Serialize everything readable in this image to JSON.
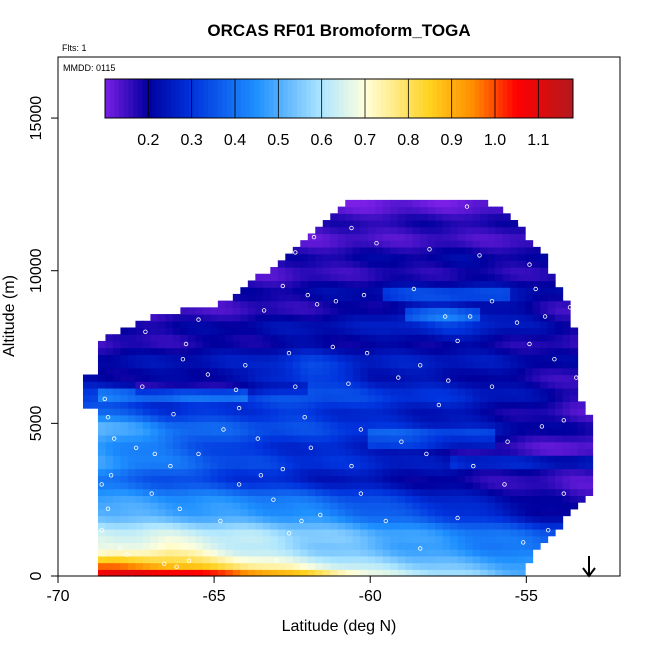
{
  "chart_data": {
    "type": "heatmap",
    "title": "ORCAS RF01 Bromoform_TOGA",
    "xlabel": "Latitude (deg N)",
    "ylabel": "Altitude (m)",
    "xlim": [
      -70,
      -52
    ],
    "ylim": [
      0,
      17000
    ],
    "x_ticks": [
      "-70",
      "-65",
      "-60",
      "-55"
    ],
    "x_tick_values": [
      -70,
      -65,
      -60,
      -55
    ],
    "y_ticks": [
      "0",
      "5000",
      "10000",
      "15000"
    ],
    "y_tick_values": [
      0,
      5000,
      10000,
      15000
    ],
    "flights_note": "Flts: 1",
    "date_note": "MMDD: 0115",
    "arrow_latitude": -53,
    "colorbar": {
      "min": 0.1,
      "max": 1.18,
      "tick_values": [
        0.2,
        0.3,
        0.4,
        0.5,
        0.6,
        0.7,
        0.8,
        0.9,
        1.0,
        1.1
      ],
      "tick_labels": [
        "0.2",
        "0.3",
        "0.4",
        "0.5",
        "0.6",
        "0.7",
        "0.8",
        "0.9",
        "1.0",
        "1.1"
      ],
      "colors": [
        "#7a1fe6",
        "#00009e",
        "#0033dd",
        "#1e90ff",
        "#aee6ff",
        "#ffffdc",
        "#ffd21e",
        "#ff8c00",
        "#ff0000",
        "#b2191e"
      ],
      "color_stops": [
        0.1,
        0.2,
        0.3,
        0.45,
        0.6,
        0.7,
        0.85,
        0.95,
        1.05,
        1.18
      ]
    },
    "shape": {
      "top": [
        [
          -68.8,
          7400
        ],
        [
          -68.4,
          7800
        ],
        [
          -67.0,
          8500
        ],
        [
          -64.5,
          9000
        ],
        [
          -63.2,
          10100
        ],
        [
          -62.0,
          11200
        ],
        [
          -60.7,
          12400
        ],
        [
          -59.5,
          12300
        ],
        [
          -56.0,
          12200
        ],
        [
          -55.0,
          11200
        ],
        [
          -54.5,
          10600
        ],
        [
          -54.0,
          9500
        ],
        [
          -53.5,
          8500
        ],
        [
          -53.3,
          5800
        ],
        [
          -52.9,
          5000
        ],
        [
          -52.9,
          2800
        ],
        [
          -53.5,
          2100
        ],
        [
          -54.0,
          1600
        ],
        [
          -54.7,
          900
        ],
        [
          -55.0,
          300
        ]
      ],
      "left_bottom": [
        -68.8,
        0
      ],
      "left_mid": [
        -69.2,
        6500
      ]
    },
    "profile": [
      {
        "alt": 0,
        "values": [
          [
            -68.8,
            1.12
          ],
          [
            -66.0,
            1.16
          ],
          [
            -63.5,
            1.0
          ],
          [
            -61.5,
            0.85
          ],
          [
            -60.0,
            0.68
          ],
          [
            -57.0,
            0.58
          ],
          [
            -55.0,
            0.5
          ]
        ]
      },
      {
        "alt": 350,
        "values": [
          [
            -68.8,
            0.95
          ],
          [
            -66.5,
            0.86
          ],
          [
            -64.0,
            0.74
          ],
          [
            -62.0,
            0.65
          ],
          [
            -60.0,
            0.58
          ],
          [
            -57.0,
            0.5
          ],
          [
            -55.0,
            0.45
          ]
        ]
      },
      {
        "alt": 800,
        "values": [
          [
            -68.8,
            0.7
          ],
          [
            -66.5,
            0.78
          ],
          [
            -64.0,
            0.66
          ],
          [
            -62.0,
            0.6
          ],
          [
            -60.0,
            0.55
          ],
          [
            -57.0,
            0.48
          ],
          [
            -54.0,
            0.42
          ]
        ]
      },
      {
        "alt": 1300,
        "values": [
          [
            -68.8,
            0.62
          ],
          [
            -66.5,
            0.64
          ],
          [
            -64.0,
            0.6
          ],
          [
            -62.0,
            0.55
          ],
          [
            -60.0,
            0.5
          ],
          [
            -57.0,
            0.42
          ],
          [
            -54.5,
            0.36
          ]
        ]
      },
      {
        "alt": 2000,
        "values": [
          [
            -68.8,
            0.56
          ],
          [
            -66.5,
            0.52
          ],
          [
            -64.0,
            0.5
          ],
          [
            -62.0,
            0.48
          ],
          [
            -60.0,
            0.42
          ],
          [
            -57.0,
            0.33
          ],
          [
            -54.0,
            0.22
          ]
        ]
      },
      {
        "alt": 2600,
        "values": [
          [
            -68.8,
            0.45
          ],
          [
            -66.5,
            0.42
          ],
          [
            -64.0,
            0.4
          ],
          [
            -62.0,
            0.36
          ],
          [
            -60.0,
            0.3
          ],
          [
            -57.0,
            0.22
          ],
          [
            -53.5,
            0.14
          ]
        ]
      },
      {
        "alt": 3300,
        "values": [
          [
            -68.8,
            0.42
          ],
          [
            -66.5,
            0.36
          ],
          [
            -64.0,
            0.3
          ],
          [
            -62.0,
            0.26
          ],
          [
            -60.0,
            0.24
          ],
          [
            -57.0,
            0.2
          ],
          [
            -53.5,
            0.17
          ]
        ]
      },
      {
        "alt": 4200,
        "values": [
          [
            -68.8,
            0.5
          ],
          [
            -66.5,
            0.42
          ],
          [
            -64.0,
            0.32
          ],
          [
            -62.0,
            0.3
          ],
          [
            -60.0,
            0.28
          ],
          [
            -57.0,
            0.2
          ],
          [
            -53.5,
            0.14
          ]
        ]
      },
      {
        "alt": 5000,
        "values": [
          [
            -68.8,
            0.52
          ],
          [
            -66.5,
            0.38
          ],
          [
            -64.0,
            0.34
          ],
          [
            -62.0,
            0.32
          ],
          [
            -60.0,
            0.28
          ],
          [
            -57.0,
            0.24
          ],
          [
            -53.5,
            0.17
          ]
        ]
      },
      {
        "alt": 5800,
        "values": [
          [
            -68.8,
            0.3
          ],
          [
            -66.5,
            0.26
          ],
          [
            -64.0,
            0.3
          ],
          [
            -62.0,
            0.34
          ],
          [
            -60.0,
            0.3
          ],
          [
            -57.0,
            0.26
          ],
          [
            -53.5,
            0.16
          ]
        ]
      },
      {
        "alt": 6600,
        "values": [
          [
            -68.8,
            0.22
          ],
          [
            -66.5,
            0.22
          ],
          [
            -64.0,
            0.24
          ],
          [
            -62.0,
            0.36
          ],
          [
            -60.0,
            0.26
          ],
          [
            -57.0,
            0.24
          ],
          [
            -53.5,
            0.18
          ]
        ]
      },
      {
        "alt": 7500,
        "values": [
          [
            -68.8,
            0.18
          ],
          [
            -66.5,
            0.2
          ],
          [
            -64.0,
            0.22
          ],
          [
            -62.0,
            0.24
          ],
          [
            -60.0,
            0.22
          ],
          [
            -57.0,
            0.22
          ],
          [
            -53.5,
            0.18
          ]
        ]
      },
      {
        "alt": 8500,
        "values": [
          [
            -68.8,
            0.15
          ],
          [
            -66.5,
            0.16
          ],
          [
            -64.0,
            0.18
          ],
          [
            -62.0,
            0.2
          ],
          [
            -60.0,
            0.22
          ],
          [
            -57.5,
            0.32
          ],
          [
            -54.0,
            0.18
          ]
        ]
      },
      {
        "alt": 9500,
        "values": [
          [
            -68.8,
            0.14
          ],
          [
            -66.5,
            0.15
          ],
          [
            -64.0,
            0.16
          ],
          [
            -62.0,
            0.18
          ],
          [
            -60.0,
            0.2
          ],
          [
            -57.0,
            0.22
          ],
          [
            -54.0,
            0.2
          ]
        ]
      },
      {
        "alt": 10600,
        "values": [
          [
            -68.8,
            0.13
          ],
          [
            -66.5,
            0.14
          ],
          [
            -64.0,
            0.14
          ],
          [
            -62.0,
            0.16
          ],
          [
            -60.0,
            0.17
          ],
          [
            -57.0,
            0.18
          ],
          [
            -54.0,
            0.16
          ]
        ]
      },
      {
        "alt": 11600,
        "values": [
          [
            -68.8,
            0.12
          ],
          [
            -66.5,
            0.13
          ],
          [
            -64.0,
            0.13
          ],
          [
            -62.0,
            0.14
          ],
          [
            -60.0,
            0.15
          ],
          [
            -57.0,
            0.16
          ],
          [
            -54.0,
            0.15
          ]
        ]
      },
      {
        "alt": 12500,
        "values": [
          [
            -68.8,
            0.12
          ],
          [
            -66.5,
            0.12
          ],
          [
            -64.0,
            0.13
          ],
          [
            -62.0,
            0.13
          ],
          [
            -60.0,
            0.13
          ],
          [
            -57.0,
            0.13
          ],
          [
            -54.0,
            0.13
          ]
        ]
      }
    ],
    "band_modulation": [
      {
        "alt": 6200,
        "lat_from": -67.5,
        "lat_to": -62.0,
        "delta": -0.06
      },
      {
        "alt": 5900,
        "lat_from": -68.8,
        "lat_to": -64.0,
        "delta": 0.1
      },
      {
        "alt": 8500,
        "lat_from": -59.0,
        "lat_to": -56.5,
        "delta": 0.1
      },
      {
        "alt": 9200,
        "lat_from": -59.5,
        "lat_to": -55.5,
        "delta": 0.08
      },
      {
        "alt": 4500,
        "lat_from": -60.0,
        "lat_to": -56.0,
        "delta": 0.08
      },
      {
        "alt": 3800,
        "lat_from": -57.5,
        "lat_to": -53.0,
        "delta": 0.06
      }
    ],
    "sample_points": [
      [
        -68.5,
        5800
      ],
      [
        -68.2,
        4500
      ],
      [
        -67.5,
        4200
      ],
      [
        -68.3,
        3300
      ],
      [
        -68.6,
        3000
      ],
      [
        -68.4,
        2200
      ],
      [
        -68.6,
        1500
      ],
      [
        -68.0,
        900
      ],
      [
        -67.8,
        700
      ],
      [
        -66.6,
        400
      ],
      [
        -66.2,
        300
      ],
      [
        -65.8,
        500
      ],
      [
        -63.0,
        500
      ],
      [
        -62.6,
        1400
      ],
      [
        -62.2,
        1800
      ],
      [
        -62.8,
        3500
      ],
      [
        -63.5,
        3300
      ],
      [
        -64.2,
        3000
      ],
      [
        -65.5,
        4000
      ],
      [
        -66.4,
        3600
      ],
      [
        -67.0,
        2700
      ],
      [
        -66.1,
        2200
      ],
      [
        -64.8,
        1800
      ],
      [
        -63.1,
        2500
      ],
      [
        -61.6,
        2000
      ],
      [
        -60.3,
        2700
      ],
      [
        -59.5,
        1800
      ],
      [
        -58.4,
        900
      ],
      [
        -57.2,
        1900
      ],
      [
        -55.1,
        1100
      ],
      [
        -54.3,
        1500
      ],
      [
        -53.4,
        1900
      ],
      [
        -53.8,
        2700
      ],
      [
        -55.7,
        3000
      ],
      [
        -56.7,
        3600
      ],
      [
        -58.2,
        4000
      ],
      [
        -59.0,
        4400
      ],
      [
        -60.3,
        4800
      ],
      [
        -62.1,
        5200
      ],
      [
        -64.2,
        5500
      ],
      [
        -64.7,
        4800
      ],
      [
        -63.6,
        4500
      ],
      [
        -66.3,
        5300
      ],
      [
        -67.3,
        6200
      ],
      [
        -65.2,
        6600
      ],
      [
        -64.0,
        6900
      ],
      [
        -62.6,
        7300
      ],
      [
        -61.2,
        7500
      ],
      [
        -60.1,
        7300
      ],
      [
        -58.4,
        6900
      ],
      [
        -57.2,
        7700
      ],
      [
        -55.3,
        8300
      ],
      [
        -54.4,
        8500
      ],
      [
        -53.6,
        8800
      ],
      [
        -54.9,
        7600
      ],
      [
        -54.1,
        7100
      ],
      [
        -53.4,
        6500
      ],
      [
        -56.1,
        6200
      ],
      [
        -57.5,
        6400
      ],
      [
        -59.1,
        6500
      ],
      [
        -60.7,
        6300
      ],
      [
        -62.4,
        6200
      ],
      [
        -64.3,
        6100
      ],
      [
        -66.0,
        7100
      ],
      [
        -65.9,
        7600
      ],
      [
        -67.2,
        8000
      ],
      [
        -65.5,
        8400
      ],
      [
        -63.4,
        8700
      ],
      [
        -61.7,
        8900
      ],
      [
        -60.2,
        9200
      ],
      [
        -58.6,
        9400
      ],
      [
        -57.6,
        8500
      ],
      [
        -56.8,
        8500
      ],
      [
        -56.1,
        9000
      ],
      [
        -54.7,
        9400
      ],
      [
        -54.9,
        10200
      ],
      [
        -56.5,
        10500
      ],
      [
        -58.1,
        10700
      ],
      [
        -59.8,
        10900
      ],
      [
        -60.6,
        11400
      ],
      [
        -61.8,
        11100
      ],
      [
        -62.4,
        10600
      ],
      [
        -62.8,
        9500
      ],
      [
        -62.0,
        9200
      ],
      [
        -61.1,
        9000
      ],
      [
        -60.9,
        12300
      ],
      [
        -56.9,
        12100
      ],
      [
        -55.2,
        11600
      ],
      [
        -53.8,
        5100
      ],
      [
        -57.8,
        5600
      ],
      [
        -61.9,
        4200
      ],
      [
        -66.9,
        4000
      ],
      [
        -68.4,
        5200
      ],
      [
        -60.6,
        3600
      ],
      [
        -55.6,
        4400
      ],
      [
        -54.5,
        4900
      ]
    ]
  }
}
